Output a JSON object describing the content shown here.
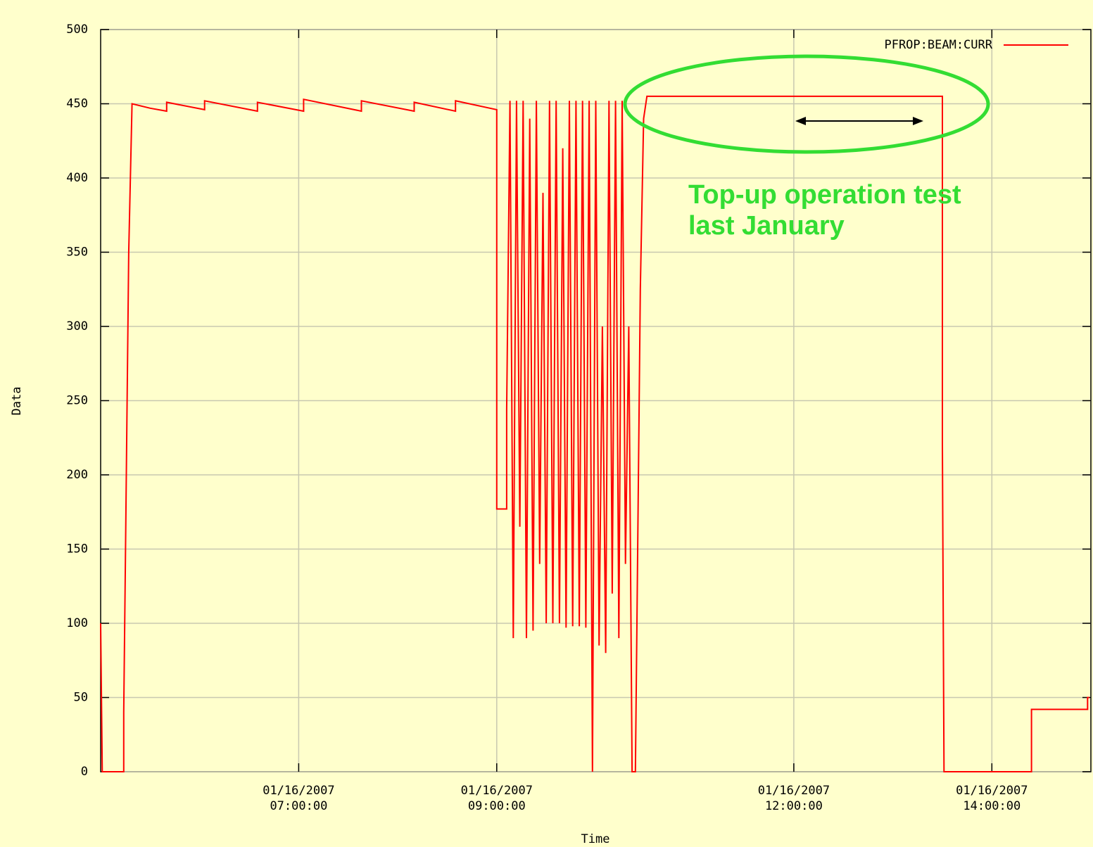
{
  "chart_data": {
    "type": "line",
    "xlabel": "Time",
    "ylabel": "Data",
    "x": [
      "01/16/2007 05:00:00",
      "01/16/2007 05:01:00",
      "01/16/2007 05:14:00",
      "01/16/2007 05:14:00",
      "01/16/2007 05:15:00",
      "01/16/2007 05:16:00",
      "01/16/2007 05:17:00",
      "01/16/2007 05:19:00",
      "01/16/2007 05:30:00",
      "01/16/2007 05:40:00",
      "01/16/2007 05:40:00",
      "01/16/2007 06:03:00",
      "01/16/2007 06:03:00",
      "01/16/2007 06:35:00",
      "01/16/2007 06:35:00",
      "01/16/2007 07:03:00",
      "01/16/2007 07:03:00",
      "01/16/2007 07:38:00",
      "01/16/2007 07:38:00",
      "01/16/2007 08:10:00",
      "01/16/2007 08:10:00",
      "01/16/2007 08:35:00",
      "01/16/2007 08:35:00",
      "01/16/2007 09:00:00",
      "01/16/2007 09:00:00",
      "01/16/2007 09:06:00",
      "01/16/2007 09:06:00",
      "01/16/2007 09:08:00",
      "01/16/2007 09:10:00",
      "01/16/2007 09:12:00",
      "01/16/2007 09:14:00",
      "01/16/2007 09:16:00",
      "01/16/2007 09:18:00",
      "01/16/2007 09:20:00",
      "01/16/2007 09:22:00",
      "01/16/2007 09:24:00",
      "01/16/2007 09:26:00",
      "01/16/2007 09:28:00",
      "01/16/2007 09:30:00",
      "01/16/2007 09:32:00",
      "01/16/2007 09:34:00",
      "01/16/2007 09:36:00",
      "01/16/2007 09:38:00",
      "01/16/2007 09:40:00",
      "01/16/2007 09:42:00",
      "01/16/2007 09:44:00",
      "01/16/2007 09:46:00",
      "01/16/2007 09:48:00",
      "01/16/2007 09:50:00",
      "01/16/2007 09:52:00",
      "01/16/2007 09:54:00",
      "01/16/2007 09:56:00",
      "01/16/2007 09:58:00",
      "01/16/2007 10:00:00",
      "01/16/2007 10:02:00",
      "01/16/2007 10:04:00",
      "01/16/2007 10:06:00",
      "01/16/2007 10:08:00",
      "01/16/2007 10:10:00",
      "01/16/2007 10:12:00",
      "01/16/2007 10:14:00",
      "01/16/2007 10:16:00",
      "01/16/2007 10:18:00",
      "01/16/2007 10:20:00",
      "01/16/2007 10:22:00",
      "01/16/2007 10:24:00",
      "01/16/2007 10:25:00",
      "01/16/2007 10:27:00",
      "01/16/2007 10:29:00",
      "01/16/2007 10:31:00",
      "01/16/2007 13:30:00",
      "01/16/2007 13:30:00",
      "01/16/2007 13:31:00",
      "01/16/2007 14:24:00",
      "01/16/2007 14:24:00",
      "01/16/2007 14:58:00",
      "01/16/2007 14:58:00",
      "01/16/2007 14:59:00"
    ],
    "series": [
      {
        "name": "PFROP:BEAM:CURR",
        "color": "#ff0000",
        "values": [
          100,
          0,
          0,
          40,
          143,
          245,
          350,
          450,
          447,
          445,
          451,
          446,
          452,
          445,
          451,
          445,
          453,
          445,
          452,
          445,
          451,
          445,
          452,
          446,
          177,
          177,
          244,
          452,
          90,
          452,
          165,
          452,
          90,
          440,
          95,
          452,
          140,
          390,
          100,
          452,
          100,
          452,
          100,
          420,
          97,
          452,
          98,
          452,
          98,
          452,
          97,
          452,
          0,
          452,
          85,
          300,
          80,
          452,
          120,
          452,
          90,
          452,
          140,
          300,
          0,
          0,
          105,
          325,
          440,
          455,
          455,
          220,
          0,
          0,
          42,
          42,
          50,
          50
        ]
      }
    ],
    "xlim": [
      "01/16/2007 05:00:00",
      "01/16/2007 15:00:00"
    ],
    "xticks": [
      {
        "value": "01/16/2007 07:00:00",
        "label": "01/16/2007\n07:00:00"
      },
      {
        "value": "01/16/2007 09:00:00",
        "label": "01/16/2007\n09:00:00"
      },
      {
        "value": "01/16/2007 12:00:00",
        "label": "01/16/2007\n12:00:00"
      },
      {
        "value": "01/16/2007 14:00:00",
        "label": "01/16/2007\n14:00:00"
      }
    ],
    "ylim": [
      0,
      500
    ],
    "yticks": [
      0,
      50,
      100,
      150,
      200,
      250,
      300,
      350,
      400,
      450,
      500
    ],
    "grid": true,
    "legend": "upper right",
    "annotations": [
      "Top-up operation test\nlast January"
    ]
  }
}
